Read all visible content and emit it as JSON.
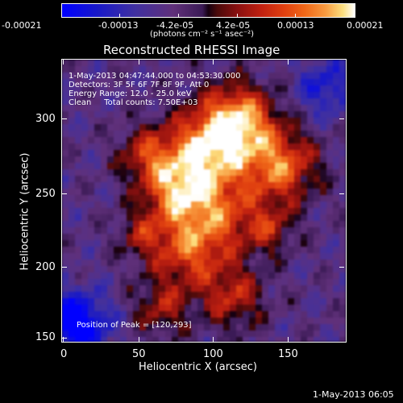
{
  "colorbar": {
    "ticks": [
      "-0.00021",
      "-0.00013",
      "-4.2e-05",
      "4.2e-05",
      "0.00013",
      "0.00021"
    ],
    "unit_label": "(photons cm⁻² s⁻¹ asec⁻²)"
  },
  "plot": {
    "title": "Reconstructed RHESSI Image",
    "annotations": {
      "time": "1-May-2013 04:47:44.000 to 04:53:30.000",
      "detectors": "Detectors: 3F 5F 6F 7F 8F 9F, Att 0",
      "energy": "Energy Range: 12.0 - 25.0 keV",
      "clean": "Clean     Total counts: 7.50E+03",
      "peak": "Position of Peak = [120,293]"
    },
    "x_axis": {
      "label": "Heliocentric X (arcsec)",
      "ticks": [
        "0",
        "50",
        "100",
        "150"
      ]
    },
    "y_axis": {
      "label": "Heliocentric Y (arcsec)",
      "ticks": [
        "150",
        "200",
        "250",
        "300"
      ]
    }
  },
  "footer_timestamp": "1-May-2013 06:05",
  "chart_data": {
    "type": "heatmap",
    "title": "Reconstructed RHESSI Image",
    "xlabel": "Heliocentric X (arcsec)",
    "ylabel": "Heliocentric Y (arcsec)",
    "xlim": [
      0,
      190
    ],
    "ylim": [
      148,
      339
    ],
    "x_ticks": [
      0,
      50,
      100,
      150
    ],
    "y_ticks": [
      150,
      200,
      250,
      300
    ],
    "colorbar_range": [
      -0.00021,
      0.00021
    ],
    "peak_position": [
      120,
      293
    ],
    "total_counts": 7500,
    "energy_range_keV": [
      12.0,
      25.0
    ],
    "colors": {
      "low": "#0000ff",
      "mid": "#150010",
      "high": "#ffffff"
    }
  }
}
